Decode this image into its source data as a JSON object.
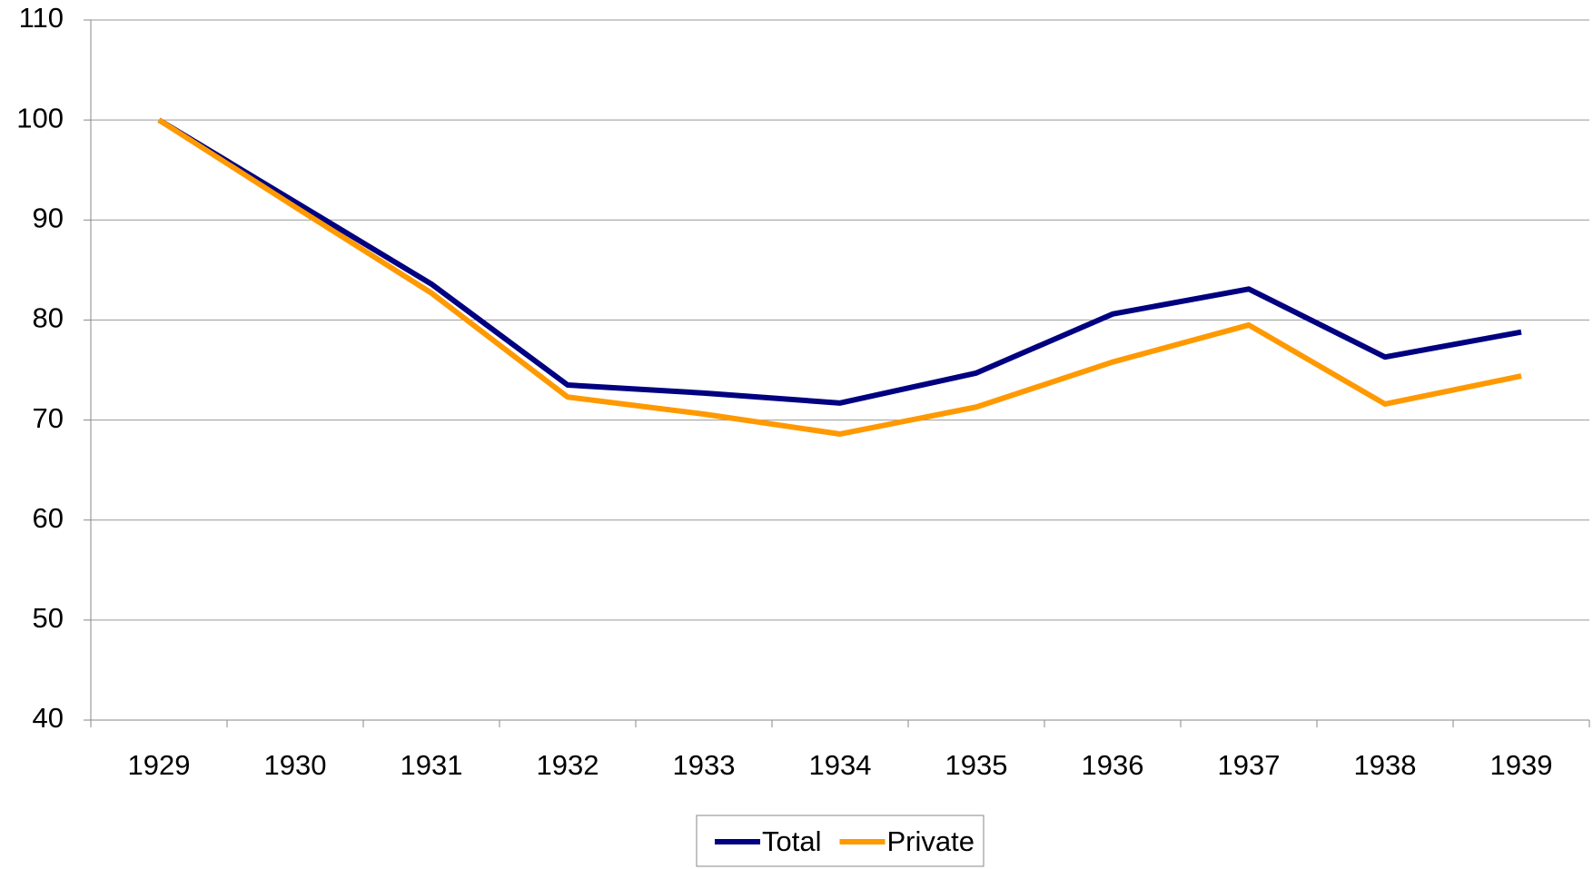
{
  "chart_data": {
    "type": "line",
    "categories": [
      "1929",
      "1930",
      "1931",
      "1932",
      "1933",
      "1934",
      "1935",
      "1936",
      "1937",
      "1938",
      "1939"
    ],
    "series": [
      {
        "name": "Total",
        "color": "#000080",
        "values": [
          100,
          91.8,
          83.6,
          73.5,
          72.7,
          71.7,
          74.7,
          80.6,
          83.1,
          76.3,
          78.8
        ]
      },
      {
        "name": "Private",
        "color": "#ff9900",
        "values": [
          100,
          91.3,
          82.7,
          72.3,
          70.6,
          68.6,
          71.3,
          75.8,
          79.5,
          71.6,
          74.4
        ]
      }
    ],
    "ylim": [
      40,
      110
    ],
    "yticks": [
      40,
      50,
      60,
      70,
      80,
      90,
      100,
      110
    ],
    "grid": true,
    "legend": "bottom"
  }
}
